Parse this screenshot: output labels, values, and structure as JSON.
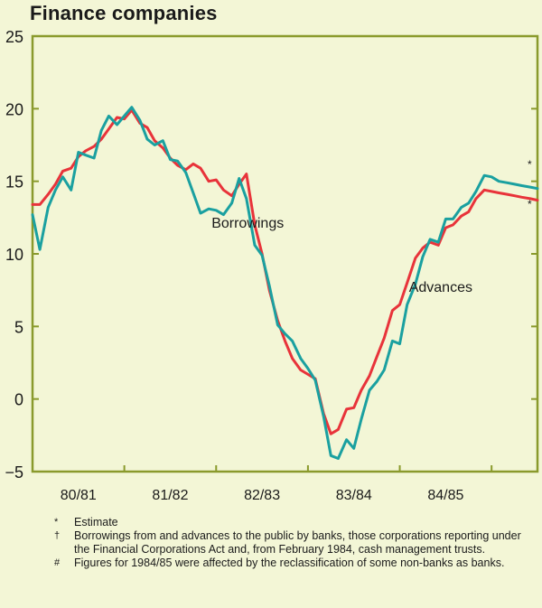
{
  "title": "Finance companies",
  "chart_data": {
    "type": "line",
    "title": "Finance companies",
    "ylim": [
      -5,
      25
    ],
    "yticks": [
      25,
      20,
      15,
      10,
      5,
      0,
      -5
    ],
    "ytick_labels": [
      "25",
      "20",
      "15",
      "10",
      "5",
      "0",
      "−5"
    ],
    "x_categories": [
      "80/81",
      "81/82",
      "82/83",
      "83/84",
      "84/85"
    ],
    "xlim": [
      0,
      5.5
    ],
    "grid": false,
    "colors": {
      "frame": "#8a9a2c",
      "borrowings": "#1aa0a0",
      "advances": "#e8333a"
    },
    "series": [
      {
        "name": "Borrowings",
        "x": [
          0.0,
          0.08,
          0.17,
          0.25,
          0.33,
          0.42,
          0.5,
          0.58,
          0.67,
          0.75,
          0.83,
          0.92,
          1.0,
          1.08,
          1.17,
          1.25,
          1.33,
          1.42,
          1.5,
          1.58,
          1.67,
          1.75,
          1.83,
          1.92,
          2.0,
          2.08,
          2.17,
          2.25,
          2.33,
          2.42,
          2.5,
          2.58,
          2.67,
          2.75,
          2.83,
          2.92,
          3.0,
          3.08,
          3.17,
          3.25,
          3.33,
          3.42,
          3.5,
          3.58,
          3.67,
          3.75,
          3.83,
          3.92,
          4.0,
          4.08,
          4.17,
          4.25,
          4.33,
          4.42,
          4.5,
          4.58,
          4.67,
          4.75,
          4.83,
          4.92,
          5.0,
          5.08,
          5.17,
          5.25,
          5.33,
          5.42,
          5.5
        ],
        "values": [
          12.7,
          10.3,
          13.2,
          14.4,
          15.3,
          14.4,
          17.0,
          16.8,
          16.6,
          18.5,
          19.5,
          18.9,
          19.5,
          20.1,
          19.2,
          17.9,
          17.5,
          17.8,
          16.5,
          16.4,
          15.6,
          14.2,
          12.8,
          13.1,
          13.0,
          12.7,
          13.5,
          15.2,
          13.8,
          10.6,
          9.9,
          7.8,
          5.1,
          4.5,
          4.0,
          2.8,
          2.1,
          1.3,
          -1.2,
          -3.9,
          -4.1,
          -2.8,
          -3.4,
          -1.4,
          0.6,
          1.2,
          2.0,
          4.0,
          3.8,
          6.5,
          7.9,
          9.8,
          11.0,
          10.8,
          12.4,
          12.4,
          13.2,
          13.5,
          14.3,
          15.4,
          15.3,
          15.0,
          14.9,
          14.8,
          14.7,
          14.6,
          14.5
        ],
        "markers": [
          {
            "x": 5.0,
            "label": "*"
          }
        ]
      },
      {
        "name": "Advances",
        "x": [
          0.0,
          0.08,
          0.17,
          0.25,
          0.33,
          0.42,
          0.5,
          0.58,
          0.67,
          0.75,
          0.83,
          0.92,
          1.0,
          1.08,
          1.17,
          1.25,
          1.33,
          1.42,
          1.5,
          1.58,
          1.67,
          1.75,
          1.83,
          1.92,
          2.0,
          2.08,
          2.17,
          2.25,
          2.33,
          2.42,
          2.5,
          2.58,
          2.67,
          2.75,
          2.83,
          2.92,
          3.0,
          3.08,
          3.17,
          3.25,
          3.33,
          3.42,
          3.5,
          3.58,
          3.67,
          3.75,
          3.83,
          3.92,
          4.0,
          4.08,
          4.17,
          4.25,
          4.33,
          4.42,
          4.5,
          4.58,
          4.67,
          4.75,
          4.83,
          4.92,
          5.0,
          5.08,
          5.17,
          5.25,
          5.33,
          5.42,
          5.5
        ],
        "values": [
          13.4,
          13.4,
          14.1,
          14.8,
          15.7,
          15.9,
          16.7,
          17.1,
          17.4,
          17.9,
          18.6,
          19.4,
          19.3,
          19.9,
          19.0,
          18.7,
          17.8,
          17.3,
          16.6,
          16.1,
          15.8,
          16.2,
          15.9,
          15.0,
          15.1,
          14.4,
          14.0,
          14.8,
          15.5,
          12.0,
          10.0,
          7.5,
          5.4,
          4.0,
          2.8,
          2.0,
          1.7,
          1.4,
          -1.0,
          -2.4,
          -2.1,
          -0.7,
          -0.6,
          0.6,
          1.6,
          2.9,
          4.2,
          6.1,
          6.5,
          8.0,
          9.7,
          10.4,
          10.8,
          10.6,
          11.8,
          12.0,
          12.6,
          12.9,
          13.8,
          14.4,
          14.3,
          14.2,
          14.1,
          14.0,
          13.9,
          13.8,
          13.7
        ],
        "markers": [
          {
            "x": 5.0,
            "label": "*"
          }
        ]
      }
    ],
    "annotations": [
      {
        "text": "Borrowings",
        "x": 1.95,
        "y": 11.8
      },
      {
        "text": "Advances",
        "x": 4.1,
        "y": 7.4
      }
    ]
  },
  "notes": [
    {
      "symbol": "*",
      "text": "Estimate"
    },
    {
      "symbol": "†",
      "text": "Borrowings from and advances to the public by banks, those corporations reporting under the Financial Corporations Act and, from February 1984, cash management trusts."
    },
    {
      "symbol": "#",
      "text": "Figures for 1984/85 were affected by the reclassification of some non-banks as banks."
    }
  ]
}
